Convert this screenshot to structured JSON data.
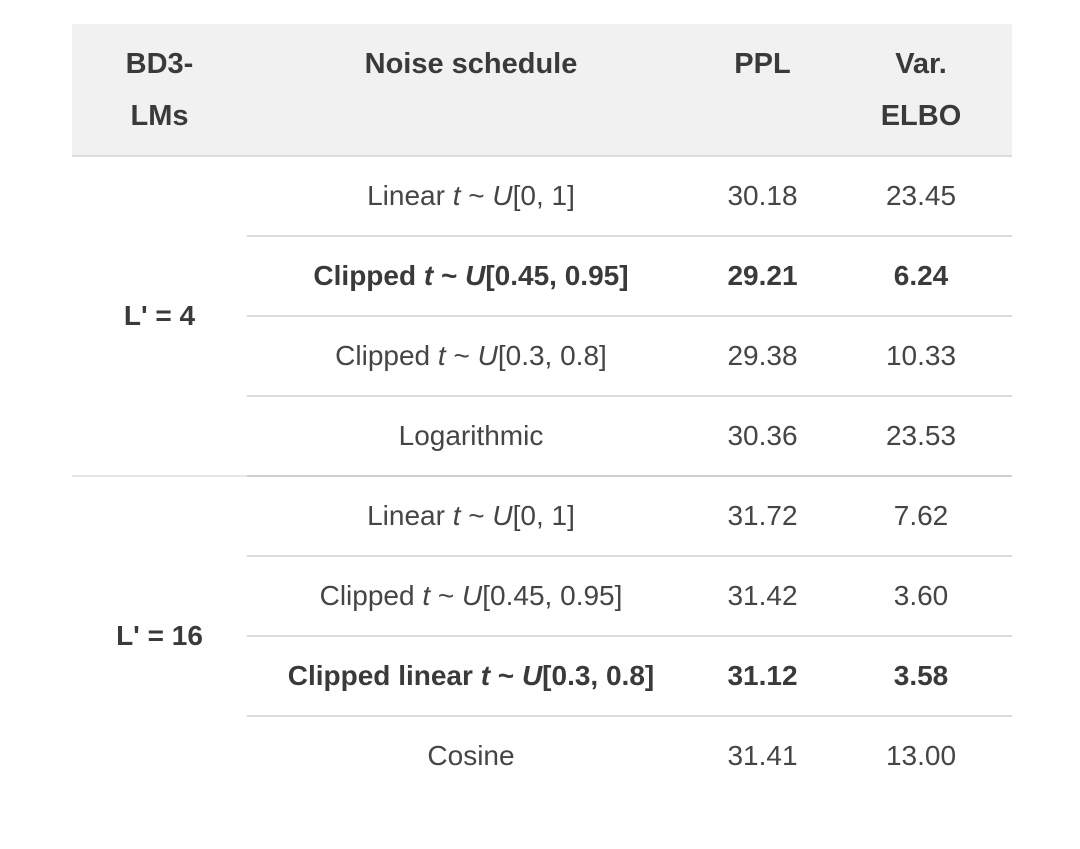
{
  "theme": {
    "page_bg": "#ffffff",
    "header_bg": "#f1f1f1",
    "header_border": "#dcdcdc",
    "row_divider": "#dbdbdb",
    "group_divider": "#cfcfcf",
    "group_divider_light": "#e5e5e5",
    "text_color": "#454545",
    "bold_text": "#3a3a3a",
    "header_text": "#3a3a3a"
  },
  "table": {
    "headers": [
      {
        "lines": [
          "BD3-",
          "LMs"
        ]
      },
      {
        "lines": [
          "Noise schedule"
        ]
      },
      {
        "lines": [
          "PPL"
        ]
      },
      {
        "lines": [
          "Var.",
          "ELBO"
        ]
      }
    ],
    "groups": [
      {
        "label": "L' = 4",
        "rows": [
          {
            "schedule": [
              {
                "t": "Linear ",
                "i": false
              },
              {
                "t": "t",
                "i": true
              },
              {
                "t": " ~ ",
                "i": false
              },
              {
                "t": "U",
                "i": true
              },
              {
                "t": "[0, 1]",
                "i": false
              }
            ],
            "ppl": "30.18",
            "elbo": "23.45",
            "bold": false
          },
          {
            "schedule": [
              {
                "t": "Clipped ",
                "i": false
              },
              {
                "t": "t",
                "i": true
              },
              {
                "t": " ~ ",
                "i": false
              },
              {
                "t": "U",
                "i": true
              },
              {
                "t": "[0.45, 0.95]",
                "i": false
              }
            ],
            "ppl": "29.21",
            "elbo": "6.24",
            "bold": true
          },
          {
            "schedule": [
              {
                "t": "Clipped ",
                "i": false
              },
              {
                "t": "t",
                "i": true
              },
              {
                "t": " ~ ",
                "i": false
              },
              {
                "t": "U",
                "i": true
              },
              {
                "t": "[0.3, 0.8]",
                "i": false
              }
            ],
            "ppl": "29.38",
            "elbo": "10.33",
            "bold": false
          },
          {
            "schedule": [
              {
                "t": "Logarithmic",
                "i": false
              }
            ],
            "ppl": "30.36",
            "elbo": "23.53",
            "bold": false
          }
        ]
      },
      {
        "label": "L' = 16",
        "rows": [
          {
            "schedule": [
              {
                "t": "Linear ",
                "i": false
              },
              {
                "t": "t",
                "i": true
              },
              {
                "t": " ~ ",
                "i": false
              },
              {
                "t": "U",
                "i": true
              },
              {
                "t": "[0, 1]",
                "i": false
              }
            ],
            "ppl": "31.72",
            "elbo": "7.62",
            "bold": false
          },
          {
            "schedule": [
              {
                "t": "Clipped ",
                "i": false
              },
              {
                "t": "t",
                "i": true
              },
              {
                "t": " ~ ",
                "i": false
              },
              {
                "t": "U",
                "i": true
              },
              {
                "t": "[0.45, 0.95]",
                "i": false
              }
            ],
            "ppl": "31.42",
            "elbo": "3.60",
            "bold": false
          },
          {
            "schedule": [
              {
                "t": "Clipped linear ",
                "i": false
              },
              {
                "t": "t",
                "i": true
              },
              {
                "t": " ~ ",
                "i": false
              },
              {
                "t": "U",
                "i": true
              },
              {
                "t": "[0.3, 0.8]",
                "i": false
              }
            ],
            "ppl": "31.12",
            "elbo": "3.58",
            "bold": true
          },
          {
            "schedule": [
              {
                "t": "Cosine",
                "i": false
              }
            ],
            "ppl": "31.41",
            "elbo": "13.00",
            "bold": false
          }
        ]
      }
    ]
  }
}
